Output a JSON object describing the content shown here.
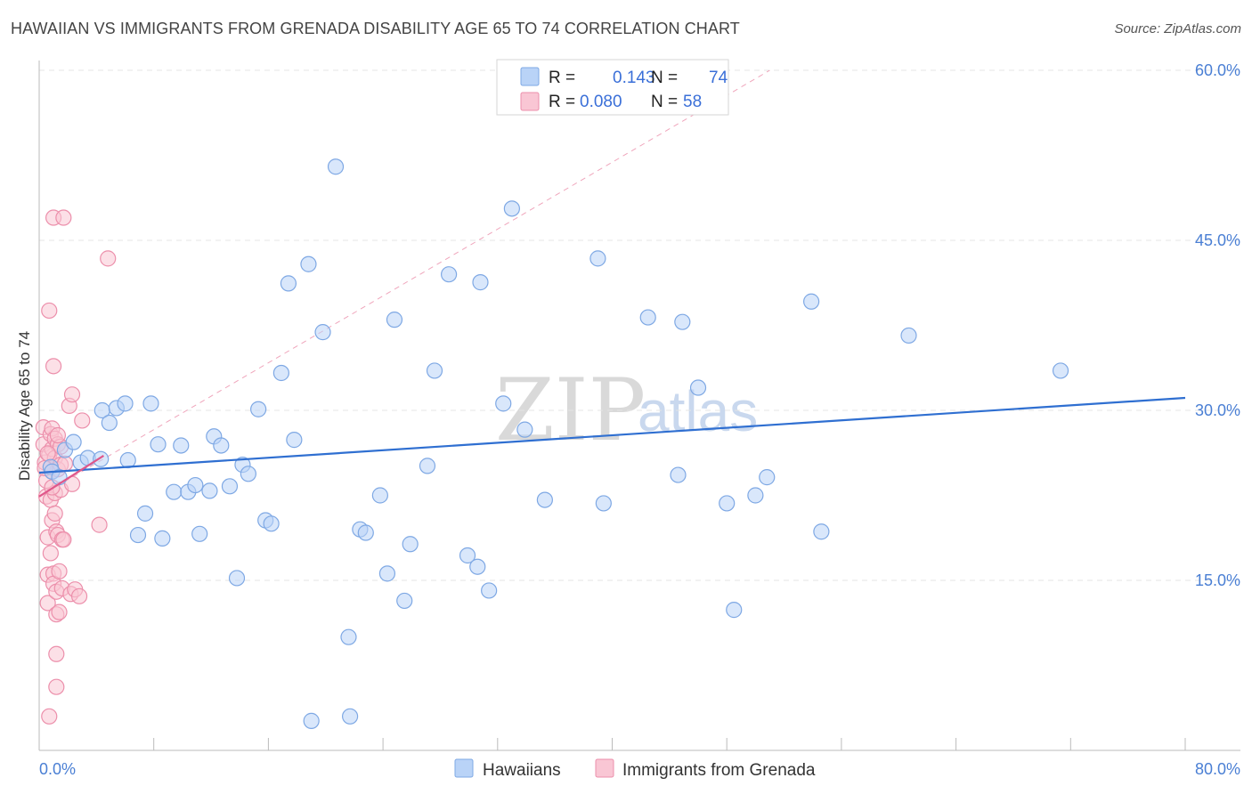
{
  "header": {
    "title": "HAWAIIAN VS IMMIGRANTS FROM GRENADA DISABILITY AGE 65 TO 74 CORRELATION CHART",
    "source": "Source: ZipAtlas.com"
  },
  "watermark": {
    "zip": "ZIP",
    "atlas": "atlas"
  },
  "chart_data": {
    "type": "scatter",
    "title": "HAWAIIAN VS IMMIGRANTS FROM GRENADA DISABILITY AGE 65 TO 74 CORRELATION CHART",
    "xlabel": "",
    "ylabel": "Disability Age 65 to 74",
    "xlim": [
      0,
      80
    ],
    "ylim": [
      0,
      60
    ],
    "x_tick_labels": [
      "0.0%",
      "80.0%"
    ],
    "y_ticks": [
      15,
      30,
      45,
      60
    ],
    "y_tick_labels": [
      "15.0%",
      "30.0%",
      "45.0%",
      "60.0%"
    ],
    "grid": true,
    "legend_position": "top-center",
    "colors": {
      "hawaiians_fill": "#b9d3f7",
      "hawaiians_stroke": "#7ea8e4",
      "hawaiians_line": "#2f6fd1",
      "grenada_fill": "#f9c6d4",
      "grenada_stroke": "#ec8fab",
      "grenada_line": "#e0578a",
      "grid": "#e4e4e4",
      "axis": "#bbbbbb",
      "tick_text": "#4a7fd4"
    },
    "stats": [
      {
        "r_label": "R =",
        "r_value": "0.143",
        "n_label": "N =",
        "n_value": "74"
      },
      {
        "r_label": "R =",
        "r_value": "0.080",
        "n_label": "N =",
        "n_value": "58"
      }
    ],
    "series": [
      {
        "name": "Hawaiians",
        "trend": {
          "x0": 0,
          "y0": 24.5,
          "x1": 80,
          "y1": 31.1
        },
        "points": [
          [
            0.8,
            25.0
          ],
          [
            0.9,
            24.6
          ],
          [
            1.8,
            26.5
          ],
          [
            2.4,
            27.2
          ],
          [
            2.9,
            25.4
          ],
          [
            3.4,
            25.8
          ],
          [
            4.3,
            25.7
          ],
          [
            4.4,
            30.0
          ],
          [
            4.9,
            28.9
          ],
          [
            5.4,
            30.2
          ],
          [
            6.0,
            30.6
          ],
          [
            6.2,
            25.6
          ],
          [
            6.9,
            19.0
          ],
          [
            7.4,
            20.9
          ],
          [
            7.8,
            30.6
          ],
          [
            8.3,
            27.0
          ],
          [
            8.6,
            18.7
          ],
          [
            9.4,
            22.8
          ],
          [
            9.9,
            26.9
          ],
          [
            10.4,
            22.8
          ],
          [
            10.9,
            23.4
          ],
          [
            11.2,
            19.1
          ],
          [
            11.9,
            22.9
          ],
          [
            12.2,
            27.7
          ],
          [
            12.7,
            26.9
          ],
          [
            13.3,
            23.3
          ],
          [
            13.8,
            15.2
          ],
          [
            14.2,
            25.2
          ],
          [
            14.6,
            24.4
          ],
          [
            15.3,
            30.1
          ],
          [
            15.8,
            20.3
          ],
          [
            16.2,
            20.0
          ],
          [
            16.9,
            33.3
          ],
          [
            17.4,
            41.2
          ],
          [
            17.8,
            27.4
          ],
          [
            18.8,
            42.9
          ],
          [
            19.0,
            2.6
          ],
          [
            19.8,
            36.9
          ],
          [
            20.7,
            51.5
          ],
          [
            21.6,
            10.0
          ],
          [
            21.7,
            3.0
          ],
          [
            22.4,
            19.5
          ],
          [
            22.8,
            19.2
          ],
          [
            23.8,
            22.5
          ],
          [
            24.3,
            15.6
          ],
          [
            24.8,
            38.0
          ],
          [
            25.5,
            13.2
          ],
          [
            25.9,
            18.2
          ],
          [
            27.1,
            25.1
          ],
          [
            27.6,
            33.5
          ],
          [
            28.6,
            42.0
          ],
          [
            29.9,
            17.2
          ],
          [
            30.6,
            16.2
          ],
          [
            30.8,
            41.3
          ],
          [
            31.4,
            14.1
          ],
          [
            32.4,
            30.6
          ],
          [
            33.0,
            47.8
          ],
          [
            33.9,
            28.3
          ],
          [
            35.3,
            22.1
          ],
          [
            39.0,
            43.4
          ],
          [
            39.4,
            21.8
          ],
          [
            42.5,
            38.2
          ],
          [
            44.6,
            24.3
          ],
          [
            44.9,
            37.8
          ],
          [
            46.0,
            32.0
          ],
          [
            48.0,
            21.8
          ],
          [
            48.5,
            12.4
          ],
          [
            50.0,
            22.5
          ],
          [
            50.8,
            24.1
          ],
          [
            53.9,
            39.6
          ],
          [
            54.6,
            19.3
          ],
          [
            60.7,
            36.6
          ],
          [
            71.3,
            33.5
          ],
          [
            1.4,
            24.1
          ]
        ]
      },
      {
        "name": "Immigrants from Grenada",
        "trend": {
          "x0": 0,
          "y0": 22.4,
          "x1": 4.5,
          "y1": 26.0
        },
        "reference": {
          "x0": 0,
          "y0": 22.4,
          "x1": 51,
          "y1": 60
        },
        "points": [
          [
            0.3,
            28.5
          ],
          [
            0.3,
            27.0
          ],
          [
            0.4,
            25.4
          ],
          [
            0.5,
            23.8
          ],
          [
            0.5,
            22.4
          ],
          [
            0.6,
            18.8
          ],
          [
            0.6,
            15.5
          ],
          [
            0.6,
            13.0
          ],
          [
            0.7,
            3.0
          ],
          [
            0.7,
            38.8
          ],
          [
            0.7,
            26.1
          ],
          [
            0.8,
            27.9
          ],
          [
            0.8,
            25.0
          ],
          [
            0.8,
            22.1
          ],
          [
            0.8,
            17.4
          ],
          [
            0.9,
            28.4
          ],
          [
            0.9,
            26.6
          ],
          [
            0.9,
            24.6
          ],
          [
            0.9,
            20.3
          ],
          [
            1.0,
            15.6
          ],
          [
            1.0,
            14.7
          ],
          [
            1.0,
            47.0
          ],
          [
            1.0,
            33.9
          ],
          [
            1.1,
            27.5
          ],
          [
            1.1,
            25.8
          ],
          [
            1.1,
            22.7
          ],
          [
            1.1,
            20.9
          ],
          [
            1.2,
            19.3
          ],
          [
            1.2,
            14.0
          ],
          [
            1.2,
            12.0
          ],
          [
            1.2,
            8.5
          ],
          [
            1.2,
            5.6
          ],
          [
            1.3,
            27.0
          ],
          [
            1.3,
            24.8
          ],
          [
            1.3,
            19.0
          ],
          [
            1.4,
            12.2
          ],
          [
            1.4,
            15.8
          ],
          [
            1.5,
            26.8
          ],
          [
            1.5,
            25.2
          ],
          [
            1.5,
            23.0
          ],
          [
            1.6,
            18.6
          ],
          [
            1.6,
            14.3
          ],
          [
            1.7,
            47.0
          ],
          [
            1.8,
            25.3
          ],
          [
            2.1,
            30.4
          ],
          [
            2.2,
            13.8
          ],
          [
            2.3,
            31.4
          ],
          [
            2.3,
            23.5
          ],
          [
            2.5,
            14.2
          ],
          [
            2.8,
            13.6
          ],
          [
            3.0,
            29.1
          ],
          [
            4.2,
            19.9
          ],
          [
            4.8,
            43.4
          ],
          [
            0.4,
            24.9
          ],
          [
            0.6,
            26.2
          ],
          [
            0.9,
            23.2
          ],
          [
            1.3,
            27.8
          ],
          [
            1.7,
            18.6
          ]
        ]
      }
    ]
  },
  "bottom_legend": {
    "items": [
      "Hawaiians",
      "Immigrants from Grenada"
    ]
  }
}
